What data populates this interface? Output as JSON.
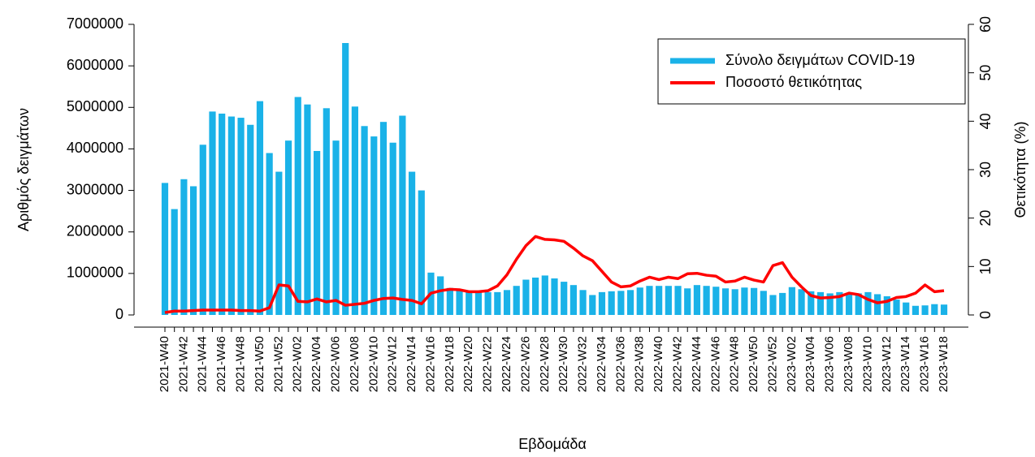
{
  "chart_data": {
    "type": "bar",
    "x_label": "Εβδομάδα",
    "y_label": "Αριθμός δειγμάτων",
    "y2_label": "Θετικότητα (%)",
    "legend": "top-right",
    "categories": [
      "2021-W40",
      null,
      "2021-W42",
      null,
      "2021-W44",
      null,
      "2021-W46",
      null,
      "2021-W48",
      null,
      "2021-W50",
      null,
      "2021-W52",
      null,
      "2022-W02",
      null,
      "2022-W04",
      null,
      "2022-W06",
      null,
      "2022-W08",
      null,
      "2022-W10",
      null,
      "2022-W12",
      null,
      "2022-W14",
      null,
      "2022-W16",
      null,
      "2022-W18",
      null,
      "2022-W20",
      null,
      "2022-W22",
      null,
      "2022-W24",
      null,
      "2022-W26",
      null,
      "2022-W28",
      null,
      "2022-W30",
      null,
      "2022-W32",
      null,
      "2022-W34",
      null,
      "2022-W36",
      null,
      "2022-W38",
      null,
      "2022-W40",
      null,
      "2022-W42",
      null,
      "2022-W44",
      null,
      "2022-W46",
      null,
      "2022-W48",
      null,
      "2022-W50",
      null,
      "2022-W52",
      null,
      "2023-W02",
      null,
      "2023-W04",
      null,
      "2023-W06",
      null,
      "2023-W08",
      null,
      "2023-W10",
      null,
      "2023-W12",
      null,
      "2023-W14",
      null,
      "2023-W16",
      null,
      "2023-W18"
    ],
    "series": [
      {
        "name": "Σύνολο δειγμάτων COVID-19",
        "type": "bar",
        "color": "#1ab2e8",
        "values": [
          3180000,
          2550000,
          3270000,
          3100000,
          4100000,
          4900000,
          4850000,
          4780000,
          4750000,
          4580000,
          5150000,
          3900000,
          3450000,
          4200000,
          5250000,
          5070000,
          3950000,
          4980000,
          4200000,
          6550000,
          5020000,
          4550000,
          4300000,
          4650000,
          4150000,
          4800000,
          3450000,
          3000000,
          1020000,
          930000,
          650000,
          620000,
          580000,
          550000,
          550000,
          550000,
          600000,
          700000,
          850000,
          900000,
          950000,
          880000,
          800000,
          720000,
          600000,
          480000,
          550000,
          570000,
          580000,
          600000,
          660000,
          700000,
          700000,
          700000,
          700000,
          640000,
          720000,
          700000,
          680000,
          640000,
          620000,
          660000,
          650000,
          580000,
          480000,
          530000,
          670000,
          620000,
          570000,
          550000,
          520000,
          550000,
          530000,
          520000,
          550000,
          500000,
          450000,
          370000,
          300000,
          220000,
          230000,
          260000,
          250000
        ]
      },
      {
        "name": "Ποσοστό θετικότητας",
        "type": "line",
        "axis": "y2",
        "color": "#ff0000",
        "values": [
          0.5,
          0.8,
          0.8,
          0.9,
          1.0,
          1.0,
          1.0,
          1.0,
          0.9,
          0.9,
          0.8,
          1.5,
          6.2,
          6.0,
          2.8,
          2.7,
          3.3,
          2.7,
          3.0,
          2.0,
          2.2,
          2.4,
          3.0,
          3.4,
          3.5,
          3.2,
          3.0,
          2.3,
          4.5,
          5.0,
          5.3,
          5.2,
          4.8,
          4.8,
          5.0,
          6.0,
          8.3,
          11.5,
          14.3,
          16.2,
          15.6,
          15.5,
          15.2,
          13.8,
          12.2,
          11.2,
          9.0,
          6.8,
          5.8,
          6.0,
          7.0,
          7.8,
          7.3,
          7.8,
          7.5,
          8.5,
          8.6,
          8.2,
          8.0,
          6.8,
          7.0,
          7.8,
          7.2,
          6.8,
          10.2,
          10.8,
          7.8,
          5.8,
          4.0,
          3.5,
          3.6,
          3.8,
          4.5,
          4.2,
          3.2,
          2.5,
          2.8,
          3.6,
          3.8,
          4.5,
          6.2,
          4.8,
          5.0
        ]
      }
    ],
    "ylim": [
      0,
      7000000
    ],
    "yticks": [
      0,
      1000000,
      2000000,
      3000000,
      4000000,
      5000000,
      6000000,
      7000000
    ],
    "y2lim": [
      0,
      60
    ],
    "y2ticks": [
      0,
      10,
      20,
      30,
      40,
      50,
      60
    ]
  }
}
